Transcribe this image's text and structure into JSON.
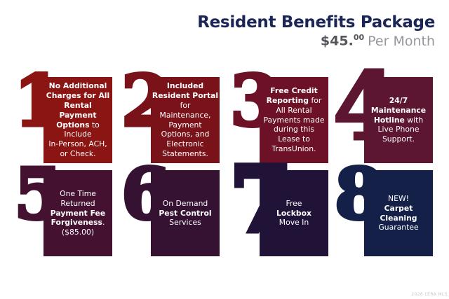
{
  "header": {
    "title": "Resident Benefits Package",
    "price": "$45.",
    "price_cents": "00",
    "price_period": "Per Month",
    "title_color": "#1b2556",
    "price_color": "#55565c",
    "period_color": "#95979c"
  },
  "blocks": [
    {
      "number": "1",
      "color": "#8b1512",
      "lines": [
        [
          {
            "t": "No Additional",
            "b": true
          }
        ],
        [
          {
            "t": "Charges for All",
            "b": true
          }
        ],
        [
          {
            "t": "Rental",
            "b": true
          }
        ],
        [
          {
            "t": "Payment",
            "b": true
          }
        ],
        [
          {
            "t": "Options",
            "b": true
          },
          {
            "t": " to",
            "b": false
          }
        ],
        [
          {
            "t": "Include",
            "b": false
          }
        ],
        [
          {
            "t": "In-Person, ACH,",
            "b": false
          }
        ],
        [
          {
            "t": "or Check.",
            "b": false
          }
        ]
      ]
    },
    {
      "number": "2",
      "color": "#7a121a",
      "lines": [
        [
          {
            "t": "Included",
            "b": true
          }
        ],
        [
          {
            "t": "Resident Portal",
            "b": true
          }
        ],
        [
          {
            "t": "for",
            "b": false
          }
        ],
        [
          {
            "t": "Maintenance,",
            "b": false
          }
        ],
        [
          {
            "t": "Payment",
            "b": false
          }
        ],
        [
          {
            "t": "Options, and",
            "b": false
          }
        ],
        [
          {
            "t": "Electronic",
            "b": false
          }
        ],
        [
          {
            "t": "Statements.",
            "b": false
          }
        ]
      ]
    },
    {
      "number": "3",
      "color": "#6d1226",
      "lines": [
        [
          {
            "t": "Free Credit",
            "b": true
          }
        ],
        [
          {
            "t": "Reporting",
            "b": true
          },
          {
            "t": " for",
            "b": false
          }
        ],
        [
          {
            "t": "All Rental",
            "b": false
          }
        ],
        [
          {
            "t": "Payments made",
            "b": false
          }
        ],
        [
          {
            "t": "during this",
            "b": false
          }
        ],
        [
          {
            "t": "Lease to",
            "b": false
          }
        ],
        [
          {
            "t": "TransUnion.",
            "b": false
          }
        ]
      ]
    },
    {
      "number": "4",
      "color": "#5c1631",
      "lines": [
        [
          {
            "t": "24/7",
            "b": true
          }
        ],
        [
          {
            "t": "Maintenance",
            "b": true
          }
        ],
        [
          {
            "t": "Hotline",
            "b": true
          },
          {
            "t": " with",
            "b": false
          }
        ],
        [
          {
            "t": "Live Phone",
            "b": false
          }
        ],
        [
          {
            "t": "Support.",
            "b": false
          }
        ]
      ]
    },
    {
      "number": "5",
      "color": "#441230",
      "lines": [
        [
          {
            "t": "One Time",
            "b": false
          }
        ],
        [
          {
            "t": "Returned",
            "b": false
          }
        ],
        [
          {
            "t": "Payment Fee",
            "b": true
          }
        ],
        [
          {
            "t": "Forgiveness",
            "b": true
          },
          {
            "t": ".",
            "b": false
          }
        ],
        [
          {
            "t": "($85.00)",
            "b": false
          }
        ]
      ]
    },
    {
      "number": "6",
      "color": "#351132",
      "lines": [
        [
          {
            "t": "On Demand",
            "b": false
          }
        ],
        [
          {
            "t": "Pest Control",
            "b": true
          }
        ],
        [
          {
            "t": "Services",
            "b": false
          }
        ]
      ]
    },
    {
      "number": "7",
      "color": "#211337",
      "lines": [
        [
          {
            "t": "Free",
            "b": false
          }
        ],
        [
          {
            "t": "Lockbox",
            "b": true
          }
        ],
        [
          {
            "t": "Move In",
            "b": false
          }
        ]
      ]
    },
    {
      "number": "8",
      "color": "#152049",
      "lines": [
        [
          {
            "t": "NEW!",
            "b": false
          }
        ],
        [
          {
            "t": "Carpet",
            "b": true
          }
        ],
        [
          {
            "t": "Cleaning",
            "b": true
          }
        ],
        [
          {
            "t": "Guarantee",
            "b": false
          }
        ]
      ]
    }
  ],
  "layout_note": "",
  "watermark": "2026 LERA MLS"
}
